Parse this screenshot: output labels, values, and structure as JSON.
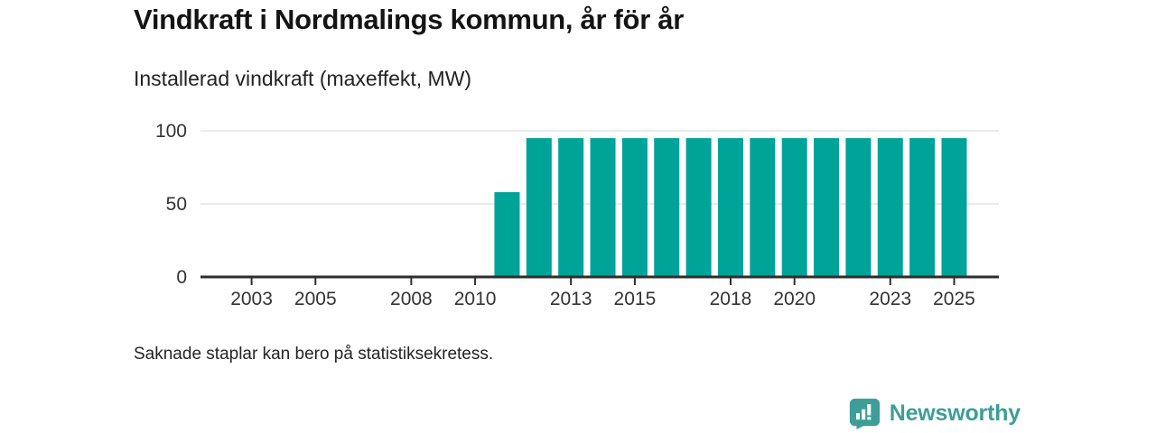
{
  "header": {
    "title": "Vindkraft i Nordmalings kommun, år för år",
    "subtitle": "Installerad vindkraft (maxeffekt, MW)"
  },
  "footnote": "Saknade staplar kan bero på statistiksekretess.",
  "branding": {
    "name": "Newsworthy",
    "icon": "newsworthy-chart-bubble-icon"
  },
  "colors": {
    "bar": "#00a397",
    "brand": "#3d9e98",
    "axis": "#2e2e2e",
    "grid": "#dedede",
    "tick_text": "#333333",
    "title_text": "#141414"
  },
  "chart_data": {
    "type": "bar",
    "title": "Vindkraft i Nordmalings kommun, år för år",
    "subtitle": "Installerad vindkraft (maxeffekt, MW)",
    "unit": "MW",
    "xlabel": "",
    "ylabel": "Installerad vindkraft (maxeffekt, MW)",
    "x": [
      2002,
      2003,
      2004,
      2005,
      2006,
      2007,
      2008,
      2009,
      2010,
      2011,
      2012,
      2013,
      2014,
      2015,
      2016,
      2017,
      2018,
      2019,
      2020,
      2021,
      2022,
      2023,
      2024,
      2025
    ],
    "values": [
      null,
      null,
      null,
      null,
      null,
      null,
      null,
      null,
      null,
      58,
      95,
      95,
      95,
      95,
      95,
      95,
      95,
      95,
      95,
      95,
      95,
      95,
      95,
      95
    ],
    "x_tick_labels": [
      2003,
      2005,
      2008,
      2010,
      2013,
      2015,
      2018,
      2020,
      2023,
      2025
    ],
    "y_ticks": [
      0,
      50,
      100
    ],
    "ylim": [
      0,
      100
    ],
    "xlim": [
      2001.4,
      2026.4
    ],
    "grid": "horizontal",
    "legend": "none"
  }
}
